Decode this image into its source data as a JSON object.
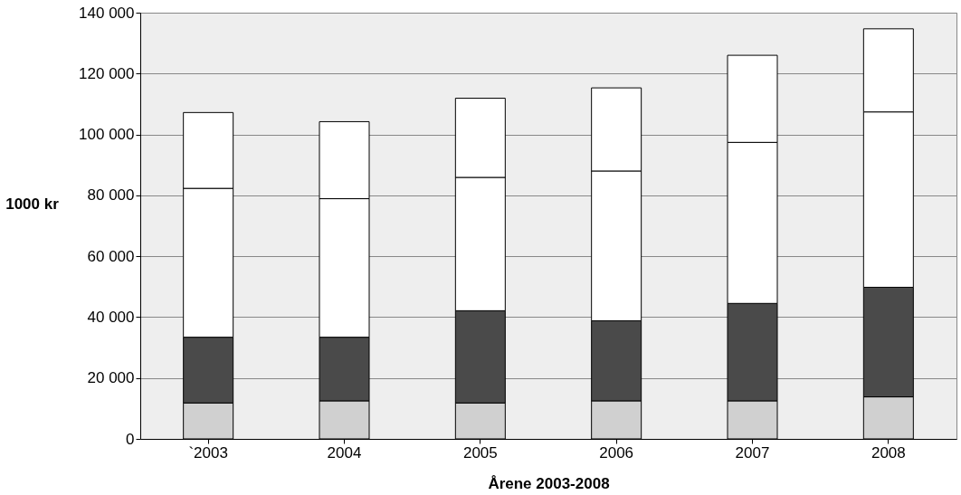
{
  "chart_data": {
    "type": "bar",
    "stacked": true,
    "xlabel": "Årene 2003-2008",
    "ylabel": "1000 kr",
    "categories": [
      "`2003",
      "2004",
      "2005",
      "2006",
      "2007",
      "2008"
    ],
    "series": [
      {
        "color": "#d0d0d0",
        "values": [
          11800,
          12500,
          11800,
          12500,
          12500,
          13800
        ]
      },
      {
        "color": "#4a4a4a",
        "values": [
          21600,
          20900,
          30300,
          26300,
          32000,
          36000
        ]
      },
      {
        "color": "#ffffff",
        "values": [
          48900,
          45500,
          43800,
          49200,
          52900,
          57600
        ]
      },
      {
        "color": "#ffffff",
        "values": [
          24900,
          25300,
          26000,
          27300,
          28600,
          27300
        ]
      }
    ],
    "ylim": [
      0,
      140000
    ],
    "yticks": [
      {
        "value": 0,
        "label": "0"
      },
      {
        "value": 20000,
        "label": "20 000"
      },
      {
        "value": 40000,
        "label": "40 000"
      },
      {
        "value": 60000,
        "label": "60 000"
      },
      {
        "value": 80000,
        "label": "80 000"
      },
      {
        "value": 100000,
        "label": "100 000"
      },
      {
        "value": 120000,
        "label": "120 000"
      },
      {
        "value": 140000,
        "label": "140 000"
      }
    ],
    "grid": "y"
  }
}
